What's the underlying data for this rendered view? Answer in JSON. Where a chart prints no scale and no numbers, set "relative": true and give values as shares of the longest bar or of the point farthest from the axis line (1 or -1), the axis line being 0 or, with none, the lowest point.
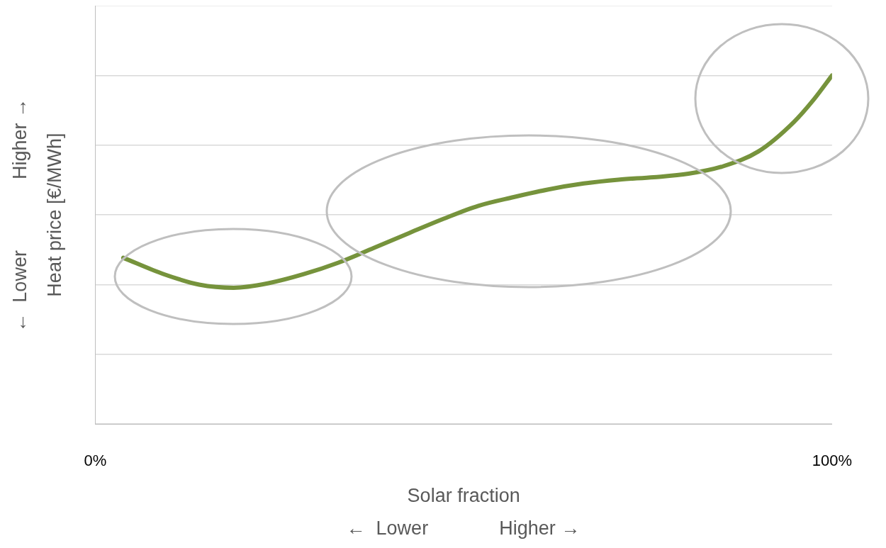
{
  "chart_data": {
    "type": "line",
    "relative": true,
    "xlabel": "Solar fraction",
    "ylabel": "Heat price [€/MWh]",
    "annotations": [
      "←  Lower",
      "Higher →",
      "←  Lower",
      "Higher →"
    ],
    "xlim": [
      0,
      100
    ],
    "xticks": [
      {
        "value": 0,
        "label": "0%"
      },
      {
        "value": 100,
        "label": "100%"
      }
    ],
    "grid": "y",
    "legend": false,
    "marker": "none",
    "line_style": "solid",
    "series": [
      {
        "color": "#76933c",
        "x": [
          3.8,
          9.3,
          14.1,
          18.8,
          23.5,
          28.3,
          33,
          37.8,
          42.5,
          47.3,
          52,
          56.8,
          61.5,
          66.3,
          71,
          75.8,
          80.5,
          85.3,
          90,
          94.8,
          97.6,
          100
        ],
        "values": [
          0.477,
          0.43,
          0.4,
          0.391,
          0.404,
          0.43,
          0.463,
          0.505,
          0.547,
          0.589,
          0.626,
          0.651,
          0.673,
          0.69,
          0.701,
          0.708,
          0.718,
          0.74,
          0.782,
          0.866,
          0.933,
          1
        ]
      }
    ]
  }
}
